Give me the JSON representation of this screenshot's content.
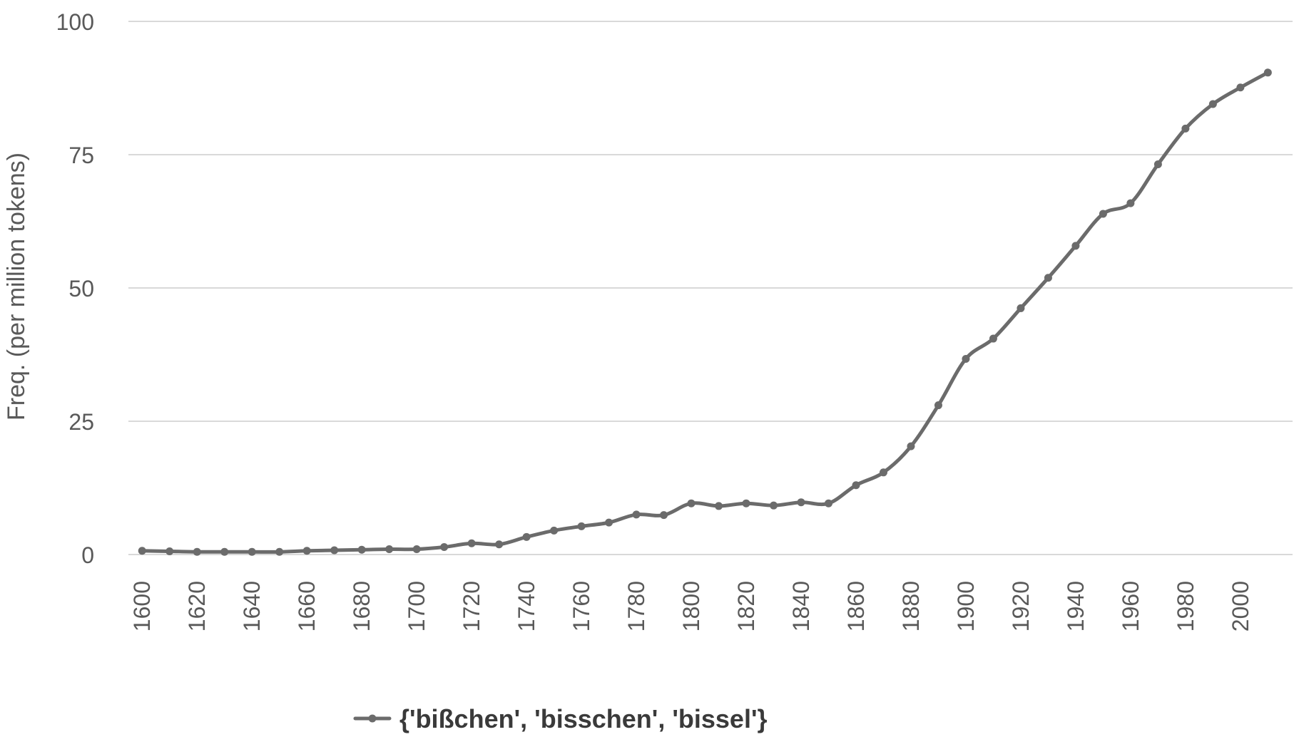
{
  "chart_data": {
    "type": "line",
    "title": "",
    "xlabel": "",
    "ylabel": "Freq. (per million tokens)",
    "ylim": [
      0,
      100
    ],
    "y_ticks": [
      "0",
      "25",
      "50",
      "75",
      "100"
    ],
    "x_ticks": [
      "1600",
      "1620",
      "1640",
      "1660",
      "1680",
      "1700",
      "1720",
      "1740",
      "1760",
      "1780",
      "1800",
      "1820",
      "1840",
      "1860",
      "1880",
      "1900",
      "1920",
      "1940",
      "1960",
      "1980",
      "2000"
    ],
    "grid": "horizontal",
    "legend_position": "bottom",
    "x": [
      1600,
      1610,
      1620,
      1630,
      1640,
      1650,
      1660,
      1670,
      1680,
      1690,
      1700,
      1710,
      1720,
      1730,
      1740,
      1750,
      1760,
      1770,
      1780,
      1790,
      1800,
      1810,
      1820,
      1830,
      1840,
      1850,
      1860,
      1870,
      1880,
      1890,
      1900,
      1910,
      1920,
      1930,
      1940,
      1950,
      1960,
      1970,
      1980,
      1990,
      2000,
      2010
    ],
    "series": [
      {
        "name": "{'bißchen', 'bisschen', 'bissel'}",
        "color": "#6b6b6b",
        "values": [
          0.7,
          0.6,
          0.5,
          0.5,
          0.5,
          0.5,
          0.7,
          0.8,
          0.9,
          1.0,
          1.0,
          1.4,
          2.1,
          1.9,
          3.3,
          4.5,
          5.3,
          6.0,
          7.5,
          7.4,
          9.6,
          9.1,
          9.6,
          9.2,
          9.8,
          9.6,
          13.0,
          15.4,
          20.3,
          28.0,
          36.7,
          40.5,
          46.2,
          51.9,
          57.9,
          63.9,
          65.9,
          73.2,
          79.9,
          84.5,
          87.6,
          90.4
        ]
      }
    ]
  }
}
